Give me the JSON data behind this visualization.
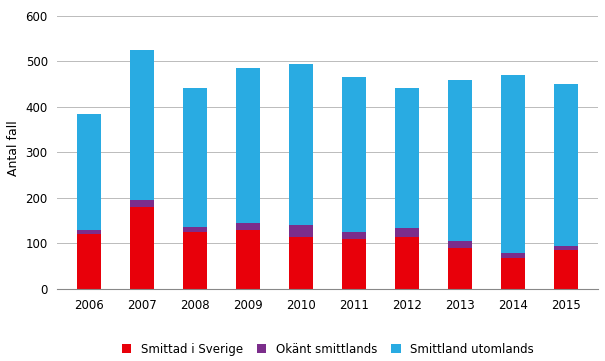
{
  "years": [
    2006,
    2007,
    2008,
    2009,
    2010,
    2011,
    2012,
    2013,
    2014,
    2015
  ],
  "smittad_sverige": [
    120,
    180,
    125,
    130,
    115,
    110,
    115,
    90,
    68,
    85
  ],
  "okant_smittlands": [
    10,
    15,
    12,
    15,
    25,
    15,
    18,
    15,
    10,
    10
  ],
  "smittland_utomlands": [
    255,
    330,
    305,
    340,
    355,
    340,
    308,
    355,
    393,
    355
  ],
  "color_sverige": "#E8000A",
  "color_okant": "#7B2D8B",
  "color_utomlands": "#29ABE2",
  "ylabel": "Antal fall",
  "ylim": [
    0,
    620
  ],
  "yticks": [
    0,
    100,
    200,
    300,
    400,
    500,
    600
  ],
  "legend_sverige": "Smittad i Sverige",
  "legend_okant": "Okänt smittlands",
  "legend_utomlands": "Smittland utomlands",
  "bar_width": 0.45,
  "background_color": "#FFFFFF",
  "grid_color": "#BBBBBB",
  "label_fontsize": 9,
  "tick_fontsize": 8.5,
  "legend_fontsize": 8.5
}
